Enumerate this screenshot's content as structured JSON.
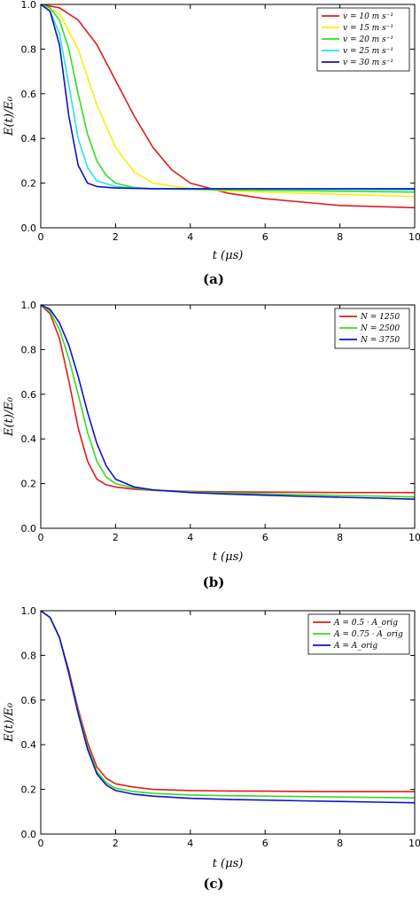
{
  "chart_data": [
    {
      "type": "line",
      "panel_label": "(a)",
      "xlabel": "t (μs)",
      "ylabel": "E(t)/E₀",
      "xlim": [
        0,
        10
      ],
      "ylim": [
        0,
        1.0
      ],
      "xticks": [
        0,
        2,
        4,
        6,
        8,
        10
      ],
      "yticks": [
        0.0,
        0.2,
        0.4,
        0.6,
        0.8,
        1.0
      ],
      "legend_position": "top-right",
      "grid": false,
      "series": [
        {
          "name": "v = 10 m s⁻¹",
          "color": "#e41a1c",
          "x": [
            0,
            0.5,
            1,
            1.5,
            2,
            2.5,
            3,
            3.5,
            4,
            5,
            6,
            7,
            8,
            9,
            10
          ],
          "y": [
            1.0,
            0.985,
            0.93,
            0.82,
            0.66,
            0.5,
            0.36,
            0.26,
            0.2,
            0.155,
            0.13,
            0.115,
            0.1,
            0.095,
            0.09
          ]
        },
        {
          "name": "v = 15 m s⁻¹",
          "color": "#f2f20a",
          "x": [
            0,
            0.5,
            1,
            1.5,
            2,
            2.5,
            3,
            4,
            5,
            6,
            7,
            8,
            9,
            10
          ],
          "y": [
            1.0,
            0.96,
            0.8,
            0.55,
            0.36,
            0.25,
            0.2,
            0.175,
            0.165,
            0.16,
            0.155,
            0.15,
            0.145,
            0.14
          ]
        },
        {
          "name": "v = 20 m s⁻¹",
          "color": "#33dd22",
          "x": [
            0,
            0.25,
            0.5,
            0.75,
            1,
            1.25,
            1.5,
            1.75,
            2,
            2.5,
            3,
            4,
            5,
            6,
            7,
            8,
            9,
            10
          ],
          "y": [
            1.0,
            0.985,
            0.93,
            0.8,
            0.6,
            0.42,
            0.3,
            0.235,
            0.2,
            0.18,
            0.175,
            0.172,
            0.17,
            0.168,
            0.166,
            0.164,
            0.162,
            0.16
          ]
        },
        {
          "name": "v = 25 m s⁻¹",
          "color": "#22e5e5",
          "x": [
            0,
            0.25,
            0.5,
            0.75,
            1,
            1.25,
            1.5,
            2,
            2.5,
            3,
            4,
            5,
            6,
            7,
            8,
            9,
            10
          ],
          "y": [
            1.0,
            0.97,
            0.87,
            0.64,
            0.4,
            0.27,
            0.21,
            0.185,
            0.178,
            0.175,
            0.175,
            0.175,
            0.174,
            0.173,
            0.172,
            0.171,
            0.17
          ]
        },
        {
          "name": "v = 30 m s⁻¹",
          "color": "#1010cc",
          "x": [
            0,
            0.25,
            0.5,
            0.75,
            1,
            1.25,
            1.5,
            2,
            3,
            4,
            5,
            6,
            7,
            8,
            9,
            10
          ],
          "y": [
            1.0,
            0.97,
            0.82,
            0.5,
            0.28,
            0.2,
            0.185,
            0.178,
            0.175,
            0.175,
            0.175,
            0.175,
            0.175,
            0.175,
            0.175,
            0.175
          ]
        }
      ]
    },
    {
      "type": "line",
      "panel_label": "(b)",
      "xlabel": "t (μs)",
      "ylabel": "E(t)/E₀",
      "xlim": [
        0,
        10
      ],
      "ylim": [
        0,
        1.0
      ],
      "xticks": [
        0,
        2,
        4,
        6,
        8,
        10
      ],
      "yticks": [
        0.0,
        0.2,
        0.4,
        0.6,
        0.8,
        1.0
      ],
      "legend_position": "top-right",
      "grid": false,
      "series": [
        {
          "name": "N = 1250",
          "color": "#e41a1c",
          "x": [
            0,
            0.25,
            0.5,
            0.75,
            1,
            1.25,
            1.5,
            1.75,
            2,
            2.5,
            3,
            4,
            5,
            6,
            7,
            8,
            9,
            10
          ],
          "y": [
            1.0,
            0.96,
            0.85,
            0.66,
            0.45,
            0.3,
            0.22,
            0.195,
            0.185,
            0.175,
            0.17,
            0.165,
            0.163,
            0.162,
            0.161,
            0.16,
            0.16,
            0.16
          ]
        },
        {
          "name": "N = 2500",
          "color": "#33dd22",
          "x": [
            0,
            0.25,
            0.5,
            0.75,
            1,
            1.25,
            1.5,
            1.75,
            2,
            2.5,
            3,
            4,
            5,
            6,
            7,
            8,
            9,
            10
          ],
          "y": [
            1.0,
            0.97,
            0.89,
            0.76,
            0.6,
            0.43,
            0.3,
            0.23,
            0.2,
            0.18,
            0.17,
            0.163,
            0.158,
            0.154,
            0.15,
            0.147,
            0.144,
            0.14
          ]
        },
        {
          "name": "N = 3750",
          "color": "#1010cc",
          "x": [
            0,
            0.25,
            0.5,
            0.75,
            1,
            1.25,
            1.5,
            1.75,
            2,
            2.5,
            3,
            4,
            5,
            6,
            7,
            8,
            9,
            10
          ],
          "y": [
            1.0,
            0.98,
            0.92,
            0.82,
            0.68,
            0.52,
            0.38,
            0.28,
            0.22,
            0.185,
            0.172,
            0.16,
            0.153,
            0.148,
            0.143,
            0.139,
            0.135,
            0.13
          ]
        }
      ]
    },
    {
      "type": "line",
      "panel_label": "(c)",
      "xlabel": "t (μs)",
      "ylabel": "E(t)/E₀",
      "xlim": [
        0,
        10
      ],
      "ylim": [
        0,
        1.0
      ],
      "xticks": [
        0,
        2,
        4,
        6,
        8,
        10
      ],
      "yticks": [
        0.0,
        0.2,
        0.4,
        0.6,
        0.8,
        1.0
      ],
      "legend_position": "top-right",
      "grid": false,
      "series": [
        {
          "name": "A = 0.5 · A_orig",
          "color": "#e41a1c",
          "x": [
            0,
            0.25,
            0.5,
            0.75,
            1,
            1.25,
            1.5,
            1.75,
            2,
            2.5,
            3,
            4,
            5,
            6,
            7,
            8,
            9,
            10
          ],
          "y": [
            1.0,
            0.97,
            0.88,
            0.73,
            0.56,
            0.41,
            0.3,
            0.25,
            0.225,
            0.21,
            0.2,
            0.195,
            0.193,
            0.192,
            0.191,
            0.19,
            0.19,
            0.19
          ]
        },
        {
          "name": "A = 0.75 · A_orig",
          "color": "#33dd22",
          "x": [
            0,
            0.25,
            0.5,
            0.75,
            1,
            1.25,
            1.5,
            1.75,
            2,
            2.5,
            3,
            4,
            5,
            6,
            7,
            8,
            9,
            10
          ],
          "y": [
            1.0,
            0.97,
            0.88,
            0.72,
            0.55,
            0.39,
            0.28,
            0.23,
            0.205,
            0.19,
            0.182,
            0.175,
            0.172,
            0.17,
            0.168,
            0.166,
            0.164,
            0.162
          ]
        },
        {
          "name": "A = A_orig",
          "color": "#1010cc",
          "x": [
            0,
            0.25,
            0.5,
            0.75,
            1,
            1.25,
            1.5,
            1.75,
            2,
            2.5,
            3,
            4,
            5,
            6,
            7,
            8,
            9,
            10
          ],
          "y": [
            1.0,
            0.97,
            0.88,
            0.72,
            0.54,
            0.38,
            0.27,
            0.22,
            0.195,
            0.178,
            0.17,
            0.16,
            0.155,
            0.152,
            0.149,
            0.146,
            0.143,
            0.14
          ]
        }
      ]
    }
  ]
}
